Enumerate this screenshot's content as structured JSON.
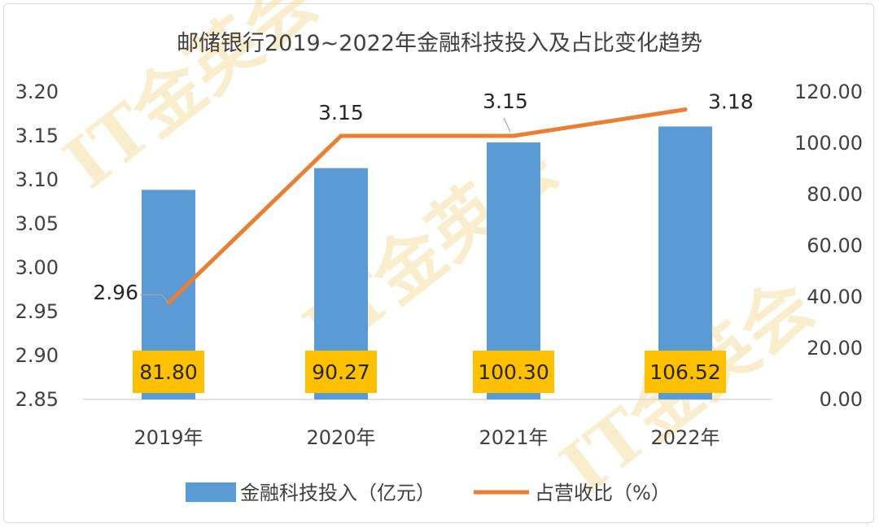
{
  "chart_data": {
    "type": "bar+line",
    "title": "邮储银行2019~2022年金融科技投入及占比变化趋势",
    "categories": [
      "2019年",
      "2020年",
      "2021年",
      "2022年"
    ],
    "series": [
      {
        "name": "金融科技投入（亿元）",
        "type": "bar",
        "axis": "right",
        "values": [
          81.8,
          90.27,
          100.3,
          106.52
        ],
        "labels": [
          "81.80",
          "90.27",
          "100.30",
          "106.52"
        ],
        "color": "#5b9bd5"
      },
      {
        "name": "占营收比（%）",
        "type": "line",
        "axis": "left",
        "values": [
          2.96,
          3.15,
          3.15,
          3.18
        ],
        "labels": [
          "2.96",
          "3.15",
          "3.15",
          "3.18"
        ],
        "color": "#ed7d31"
      }
    ],
    "left_axis": {
      "min": 2.85,
      "max": 3.2,
      "ticks": [
        "3.20",
        "3.15",
        "3.10",
        "3.05",
        "3.00",
        "2.95",
        "2.90",
        "2.85"
      ]
    },
    "right_axis": {
      "min": 0,
      "max": 120,
      "ticks": [
        "120.00",
        "100.00",
        "80.00",
        "60.00",
        "40.00",
        "20.00",
        "0.00"
      ]
    },
    "bar_label_bg": "#ffc000",
    "legend_position": "bottom"
  },
  "watermark": "IT金英会"
}
